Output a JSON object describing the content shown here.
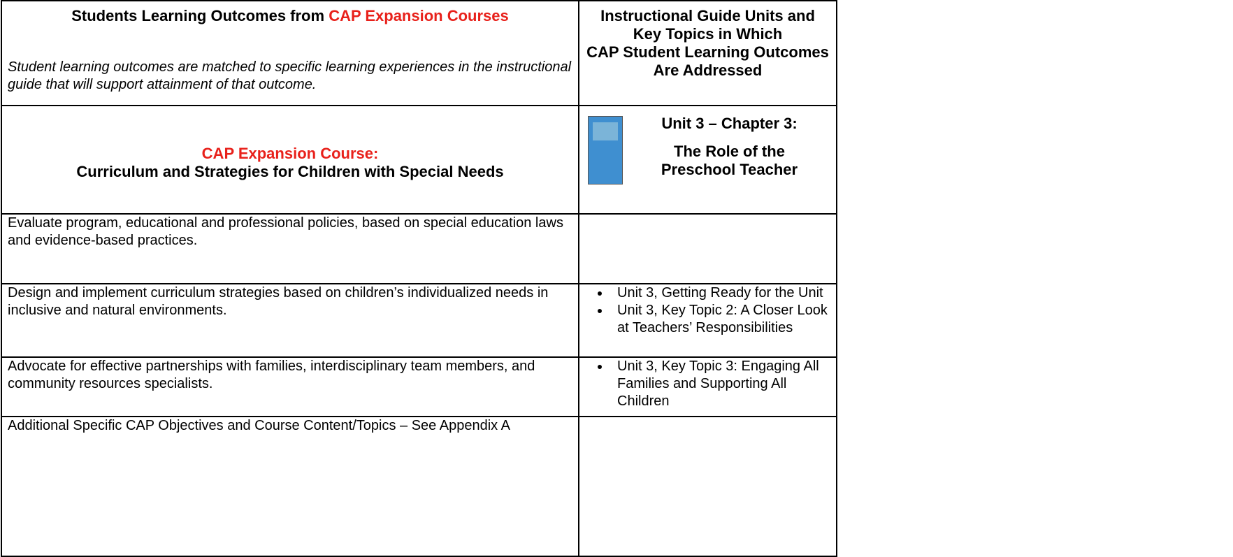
{
  "header": {
    "left_title_prefix": "Students Learning Outcomes from",
    "left_title_highlight": "CAP Expansion Courses",
    "left_note": "Student learning outcomes are matched to specific learning experiences in the instructional guide that will support attainment of that outcome.",
    "right_title_lines": [
      "Instructional Guide Units and",
      "Key Topics in Which",
      "CAP Student Learning Outcomes",
      "Are Addressed"
    ]
  },
  "course": {
    "label": "CAP Expansion Course:",
    "name": "Curriculum and Strategies for Children with Special Needs",
    "unit": "Unit 3 – Chapter 3:",
    "chapter_lines": [
      "The Role of the",
      "Preschool Teacher"
    ]
  },
  "rows": [
    {
      "outcome": "Evaluate program, educational and professional policies, based on special education laws and evidence-based practices.",
      "topics": []
    },
    {
      "outcome": "Design and implement curriculum strategies based on children’s individualized needs in inclusive and natural environments.",
      "topics": [
        "Unit 3, Getting Ready for the Unit",
        "Unit 3, Key Topic 2: A Closer Look at Teachers’ Responsibilities"
      ]
    },
    {
      "outcome": "Advocate for effective partnerships with families, interdisciplinary team members, and community resources specialists.",
      "topics": [
        "Unit 3, Key Topic 3: Engaging All Families and Supporting All Children"
      ]
    },
    {
      "outcome": "Additional Specific CAP Objectives and Course Content/Topics – See Appendix A",
      "topics": []
    }
  ]
}
